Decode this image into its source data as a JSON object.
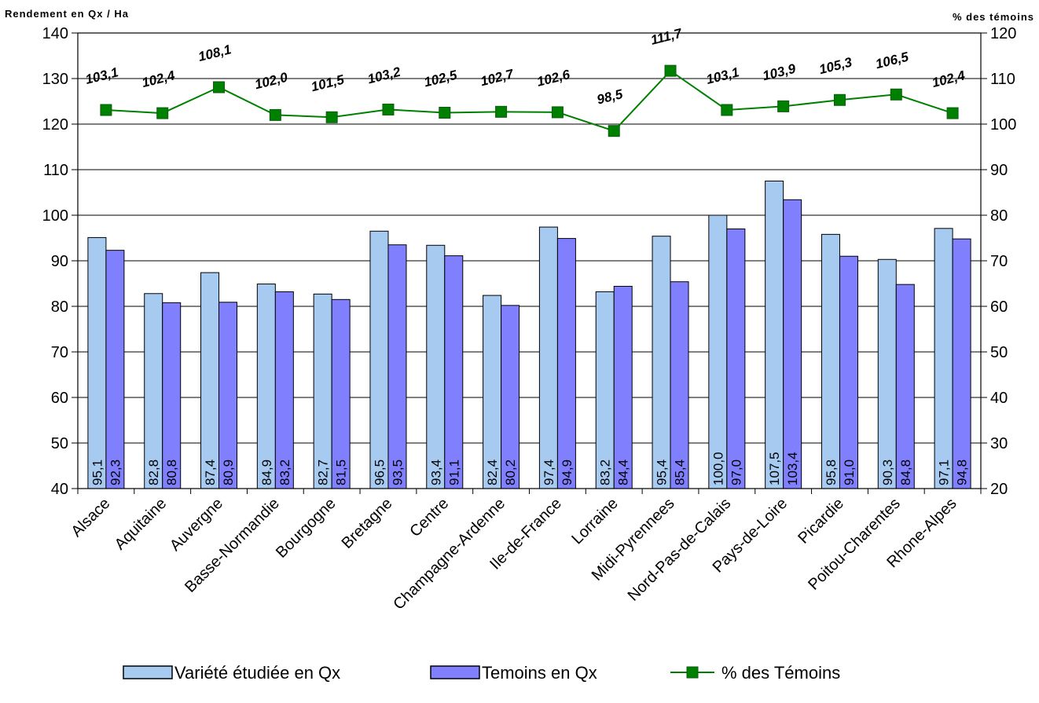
{
  "chart_data": {
    "type": "bar",
    "y_left_label": "Rendement en Qx / Ha",
    "y_right_label": "% des témoins",
    "ylim_left": [
      40,
      140
    ],
    "ylim_right": [
      20,
      120
    ],
    "yticks_left": [
      "40",
      "50",
      "60",
      "70",
      "80",
      "90",
      "100",
      "110",
      "120",
      "130",
      "140"
    ],
    "yticks_right": [
      "20",
      "30",
      "40",
      "50",
      "60",
      "70",
      "80",
      "90",
      "100",
      "110",
      "120"
    ],
    "grid": "horizontal",
    "legend_position": "bottom",
    "categories": [
      "Alsace",
      "Aquitaine",
      "Auvergne",
      "Basse-Normandie",
      "Bourgogne",
      "Bretagne",
      "Centre",
      "Champagne-Ardenne",
      "Ile-de-France",
      "Lorraine",
      "Midi-Pyrennees",
      "Nord-Pas-de-Calais",
      "Pays-de-Loire",
      "Picardie",
      "Poitou-Charentes",
      "Rhone-Alpes"
    ],
    "series": [
      {
        "name": "Variété étudiée en Qx",
        "type": "bar",
        "axis": "left",
        "color": "#a6caf0",
        "values": [
          95.1,
          82.8,
          87.4,
          84.9,
          82.7,
          96.5,
          93.4,
          82.4,
          97.4,
          83.2,
          95.4,
          100.0,
          107.5,
          95.8,
          90.3,
          97.1
        ],
        "labels": [
          "95,1",
          "82,8",
          "87,4",
          "84,9",
          "82,7",
          "96,5",
          "93,4",
          "82,4",
          "97,4",
          "83,2",
          "95,4",
          "100,0",
          "107,5",
          "95,8",
          "90,3",
          "97,1"
        ]
      },
      {
        "name": "Temoins en Qx",
        "type": "bar",
        "axis": "left",
        "color": "#8080ff",
        "values": [
          92.3,
          80.8,
          80.9,
          83.2,
          81.5,
          93.5,
          91.1,
          80.2,
          94.9,
          84.4,
          85.4,
          97.0,
          103.4,
          91.0,
          84.8,
          94.8
        ],
        "labels": [
          "92,3",
          "80,8",
          "80,9",
          "83,2",
          "81,5",
          "93,5",
          "91,1",
          "80,2",
          "94,9",
          "84,4",
          "85,4",
          "97,0",
          "103,4",
          "91,0",
          "84,8",
          "94,8"
        ]
      },
      {
        "name": "% des Témoins",
        "type": "line",
        "axis": "right",
        "color": "#008000",
        "marker_color": "#008000",
        "values": [
          103.1,
          102.4,
          108.1,
          102.0,
          101.5,
          103.2,
          102.5,
          102.7,
          102.6,
          98.5,
          111.7,
          103.1,
          103.9,
          105.3,
          106.5,
          102.4
        ],
        "labels": [
          "103,1",
          "102,4",
          "108,1",
          "102,0",
          "101,5",
          "103,2",
          "102,5",
          "102,7",
          "102,6",
          "98,5",
          "111,7",
          "103,1",
          "103,9",
          "105,3",
          "106,5",
          "102,4"
        ]
      }
    ]
  }
}
